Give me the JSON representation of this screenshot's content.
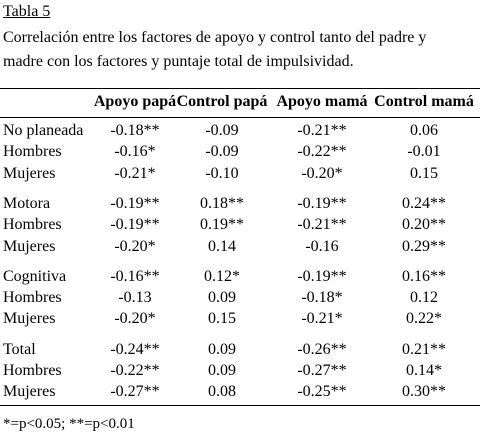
{
  "header": {
    "label": "Tabla 5",
    "title_lines": [
      "Correlación entre los factores de apoyo y control tanto del padre y",
      "madre con los factores y puntaje total de impulsividad."
    ]
  },
  "table": {
    "columns": [
      "Apoyo papá",
      "Control papá",
      "Apoyo mamá",
      "Control mamá"
    ],
    "rows": [
      [
        "No planeada",
        "-0.18**",
        "-0.09",
        "-0.21**",
        "0.06"
      ],
      [
        "Hombres",
        "-0.16*",
        "-0.09",
        "-0.22**",
        "-0.01"
      ],
      [
        "Mujeres",
        "-0.21*",
        "-0.10",
        "-0.20*",
        "0.15"
      ],
      [
        "Motora",
        "-0.19**",
        "0.18**",
        "-0.19**",
        "0.24**"
      ],
      [
        "Hombres",
        "-0.19**",
        "0.19**",
        "-0.21**",
        "0.20**"
      ],
      [
        "Mujeres",
        "-0.20*",
        "0.14",
        "-0.16",
        "0.29**"
      ],
      [
        "Cognitiva",
        "-0.16**",
        "0.12*",
        "-0.19**",
        "0.16**"
      ],
      [
        "Hombres",
        "-0.13",
        "0.09",
        "-0.18*",
        "0.12"
      ],
      [
        "Mujeres",
        "-0.20*",
        "0.15",
        "-0.21*",
        "0.22*"
      ],
      [
        "Total",
        "-0.24**",
        "0.09",
        "-0.26**",
        "0.21**"
      ],
      [
        "Hombres",
        "-0.22**",
        "0.09",
        "-0.27**",
        "0.14*"
      ],
      [
        "Mujeres",
        "-0.27**",
        "0.08",
        "-0.25**",
        "0.30**"
      ]
    ]
  },
  "footnote": "*=p<0.05; **=p<0.01"
}
